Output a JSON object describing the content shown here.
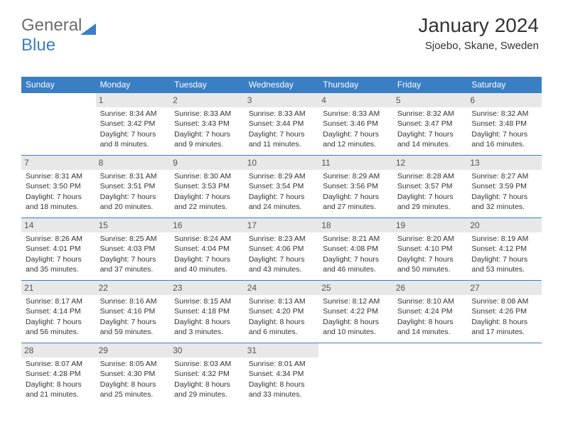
{
  "logo": {
    "text1": "General",
    "text2": "Blue"
  },
  "header": {
    "month_title": "January 2024",
    "location": "Sjoebo, Skane, Sweden"
  },
  "colors": {
    "header_blue": "#3a7fc4",
    "daynum_bg": "#e8e8e8",
    "text": "#333333",
    "logo_gray": "#6b6b6b",
    "logo_blue": "#3a7fc4",
    "row_divider": "#3a7fc4"
  },
  "weekdays": [
    "Sunday",
    "Monday",
    "Tuesday",
    "Wednesday",
    "Thursday",
    "Friday",
    "Saturday"
  ],
  "weeks": [
    [
      null,
      {
        "n": "1",
        "sr": "8:34 AM",
        "ss": "3:42 PM",
        "dl": "7 hours and 8 minutes."
      },
      {
        "n": "2",
        "sr": "8:33 AM",
        "ss": "3:43 PM",
        "dl": "7 hours and 9 minutes."
      },
      {
        "n": "3",
        "sr": "8:33 AM",
        "ss": "3:44 PM",
        "dl": "7 hours and 11 minutes."
      },
      {
        "n": "4",
        "sr": "8:33 AM",
        "ss": "3:46 PM",
        "dl": "7 hours and 12 minutes."
      },
      {
        "n": "5",
        "sr": "8:32 AM",
        "ss": "3:47 PM",
        "dl": "7 hours and 14 minutes."
      },
      {
        "n": "6",
        "sr": "8:32 AM",
        "ss": "3:48 PM",
        "dl": "7 hours and 16 minutes."
      }
    ],
    [
      {
        "n": "7",
        "sr": "8:31 AM",
        "ss": "3:50 PM",
        "dl": "7 hours and 18 minutes."
      },
      {
        "n": "8",
        "sr": "8:31 AM",
        "ss": "3:51 PM",
        "dl": "7 hours and 20 minutes."
      },
      {
        "n": "9",
        "sr": "8:30 AM",
        "ss": "3:53 PM",
        "dl": "7 hours and 22 minutes."
      },
      {
        "n": "10",
        "sr": "8:29 AM",
        "ss": "3:54 PM",
        "dl": "7 hours and 24 minutes."
      },
      {
        "n": "11",
        "sr": "8:29 AM",
        "ss": "3:56 PM",
        "dl": "7 hours and 27 minutes."
      },
      {
        "n": "12",
        "sr": "8:28 AM",
        "ss": "3:57 PM",
        "dl": "7 hours and 29 minutes."
      },
      {
        "n": "13",
        "sr": "8:27 AM",
        "ss": "3:59 PM",
        "dl": "7 hours and 32 minutes."
      }
    ],
    [
      {
        "n": "14",
        "sr": "8:26 AM",
        "ss": "4:01 PM",
        "dl": "7 hours and 35 minutes."
      },
      {
        "n": "15",
        "sr": "8:25 AM",
        "ss": "4:03 PM",
        "dl": "7 hours and 37 minutes."
      },
      {
        "n": "16",
        "sr": "8:24 AM",
        "ss": "4:04 PM",
        "dl": "7 hours and 40 minutes."
      },
      {
        "n": "17",
        "sr": "8:23 AM",
        "ss": "4:06 PM",
        "dl": "7 hours and 43 minutes."
      },
      {
        "n": "18",
        "sr": "8:21 AM",
        "ss": "4:08 PM",
        "dl": "7 hours and 46 minutes."
      },
      {
        "n": "19",
        "sr": "8:20 AM",
        "ss": "4:10 PM",
        "dl": "7 hours and 50 minutes."
      },
      {
        "n": "20",
        "sr": "8:19 AM",
        "ss": "4:12 PM",
        "dl": "7 hours and 53 minutes."
      }
    ],
    [
      {
        "n": "21",
        "sr": "8:17 AM",
        "ss": "4:14 PM",
        "dl": "7 hours and 56 minutes."
      },
      {
        "n": "22",
        "sr": "8:16 AM",
        "ss": "4:16 PM",
        "dl": "7 hours and 59 minutes."
      },
      {
        "n": "23",
        "sr": "8:15 AM",
        "ss": "4:18 PM",
        "dl": "8 hours and 3 minutes."
      },
      {
        "n": "24",
        "sr": "8:13 AM",
        "ss": "4:20 PM",
        "dl": "8 hours and 6 minutes."
      },
      {
        "n": "25",
        "sr": "8:12 AM",
        "ss": "4:22 PM",
        "dl": "8 hours and 10 minutes."
      },
      {
        "n": "26",
        "sr": "8:10 AM",
        "ss": "4:24 PM",
        "dl": "8 hours and 14 minutes."
      },
      {
        "n": "27",
        "sr": "8:08 AM",
        "ss": "4:26 PM",
        "dl": "8 hours and 17 minutes."
      }
    ],
    [
      {
        "n": "28",
        "sr": "8:07 AM",
        "ss": "4:28 PM",
        "dl": "8 hours and 21 minutes."
      },
      {
        "n": "29",
        "sr": "8:05 AM",
        "ss": "4:30 PM",
        "dl": "8 hours and 25 minutes."
      },
      {
        "n": "30",
        "sr": "8:03 AM",
        "ss": "4:32 PM",
        "dl": "8 hours and 29 minutes."
      },
      {
        "n": "31",
        "sr": "8:01 AM",
        "ss": "4:34 PM",
        "dl": "8 hours and 33 minutes."
      },
      null,
      null,
      null
    ]
  ],
  "labels": {
    "sunrise": "Sunrise:",
    "sunset": "Sunset:",
    "daylight": "Daylight:"
  }
}
